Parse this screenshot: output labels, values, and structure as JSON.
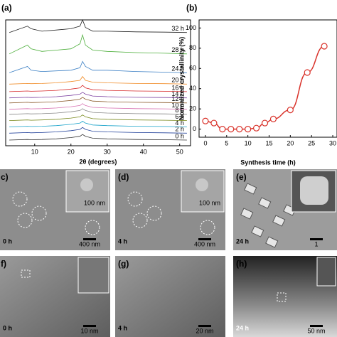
{
  "chart_data": [
    {
      "type": "line",
      "label": "(a)",
      "xlabel": "2θ (degrees)",
      "xlim": [
        2,
        53
      ],
      "xticks": [
        10,
        20,
        30,
        40,
        50
      ],
      "ylim": [
        0,
        100
      ],
      "x": [
        3,
        8,
        9,
        12,
        16,
        20,
        22.5,
        23.2,
        24,
        26,
        30,
        38,
        46,
        52
      ],
      "series": [
        {
          "name": "0 h",
          "color": "#333333",
          "values": [
            4.5,
            5,
            4.8,
            5,
            5.5,
            6.5,
            7.5,
            9,
            7.5,
            6,
            5.5,
            5,
            4.8,
            4.5
          ]
        },
        {
          "name": "2 h",
          "color": "#1f3f99",
          "values": [
            10,
            10.5,
            10.3,
            10.5,
            11,
            12,
            13,
            14.5,
            13,
            11.5,
            11,
            10.5,
            10.3,
            10
          ]
        },
        {
          "name": "4 h",
          "color": "#17a2c9",
          "values": [
            15,
            15.5,
            15.3,
            15.5,
            16,
            17,
            18,
            19.5,
            18,
            16.5,
            16,
            15.5,
            15.3,
            15
          ]
        },
        {
          "name": "6 h",
          "color": "#7a8a1e",
          "values": [
            20,
            20.5,
            20.3,
            20.5,
            21,
            22,
            23,
            24.5,
            23,
            21.5,
            21,
            20.5,
            20.3,
            20
          ]
        },
        {
          "name": "8 h",
          "color": "#888888",
          "values": [
            25,
            25.5,
            25.3,
            25.5,
            26,
            27,
            28,
            29.5,
            28,
            26.5,
            26,
            25.5,
            25.3,
            25
          ]
        },
        {
          "name": "10 h",
          "color": "#d66fb0",
          "values": [
            29,
            29.5,
            29.3,
            29.5,
            30,
            31,
            32,
            33.5,
            32,
            30.5,
            30,
            29.5,
            29.3,
            29
          ]
        },
        {
          "name": "12 h",
          "color": "#8b5a2b",
          "values": [
            34,
            34.5,
            34.3,
            34.5,
            35,
            36,
            37,
            38.5,
            37,
            35.5,
            35,
            34.5,
            34.3,
            34
          ]
        },
        {
          "name": "14 h",
          "color": "#7b3fa0",
          "values": [
            38,
            38.5,
            38.3,
            38.5,
            39,
            40,
            41,
            42.5,
            41,
            39.5,
            39,
            38.5,
            38.3,
            38
          ]
        },
        {
          "name": "16 h",
          "color": "#d62728",
          "values": [
            43,
            43.5,
            43.3,
            43.5,
            44,
            45,
            46,
            48,
            46,
            44.5,
            44,
            43.5,
            43.3,
            43
          ]
        },
        {
          "name": "20 h",
          "color": "#f08a24",
          "values": [
            49,
            49.5,
            49.3,
            49.5,
            50,
            51,
            52,
            55,
            52,
            50.5,
            50,
            49.5,
            49.3,
            49
          ]
        },
        {
          "name": "24 h",
          "color": "#3b7fc4",
          "values": [
            58,
            63,
            60,
            59,
            59.5,
            60,
            62,
            67,
            63,
            60,
            60,
            59,
            58.5,
            58
          ]
        },
        {
          "name": "28 h",
          "color": "#4cae3a",
          "values": [
            73,
            80,
            77,
            75,
            76,
            77,
            81,
            88,
            80,
            76,
            75,
            74,
            73.5,
            73
          ]
        },
        {
          "name": "32 h",
          "color": "#222222",
          "values": [
            90,
            95,
            93,
            91,
            92,
            93,
            95,
            100,
            94,
            91,
            91,
            90.5,
            90.3,
            90
          ]
        }
      ]
    },
    {
      "type": "line",
      "label": "(b)",
      "xlabel": "Synthesis time (h)",
      "ylabel": "Normalized crystallinity (%)",
      "xlim": [
        -1.5,
        31
      ],
      "xticks": [
        0,
        5,
        10,
        15,
        20,
        25,
        30
      ],
      "ylim": [
        -8,
        108
      ],
      "yticks": [
        0,
        20,
        40,
        60,
        80,
        100
      ],
      "color": "#d9332b",
      "x": [
        0,
        2,
        4,
        6,
        8,
        10,
        12,
        14,
        16,
        20,
        24,
        28
      ],
      "values": [
        8,
        6,
        0,
        0,
        0,
        0,
        1,
        6,
        10,
        19,
        56,
        82
      ]
    }
  ],
  "panels": [
    {
      "label": "c)",
      "time": "0 h",
      "scale": "400 nm",
      "inset_scale": "100 nm",
      "kind": "sem"
    },
    {
      "label": "(d)",
      "time": "4 h",
      "scale": "400 nm",
      "inset_scale": "100 nm",
      "kind": "sem"
    },
    {
      "label": "(e)",
      "time": "24 h",
      "scale": "1",
      "kind": "sem2"
    },
    {
      "label": "f)",
      "time": "0 h",
      "scale": "10 nm",
      "kind": "tem"
    },
    {
      "label": "(g)",
      "time": "4 h",
      "scale": "20 nm",
      "kind": "tem"
    },
    {
      "label": "(h)",
      "time": "24 h",
      "scale": "50 nm",
      "kind": "tem2"
    }
  ]
}
